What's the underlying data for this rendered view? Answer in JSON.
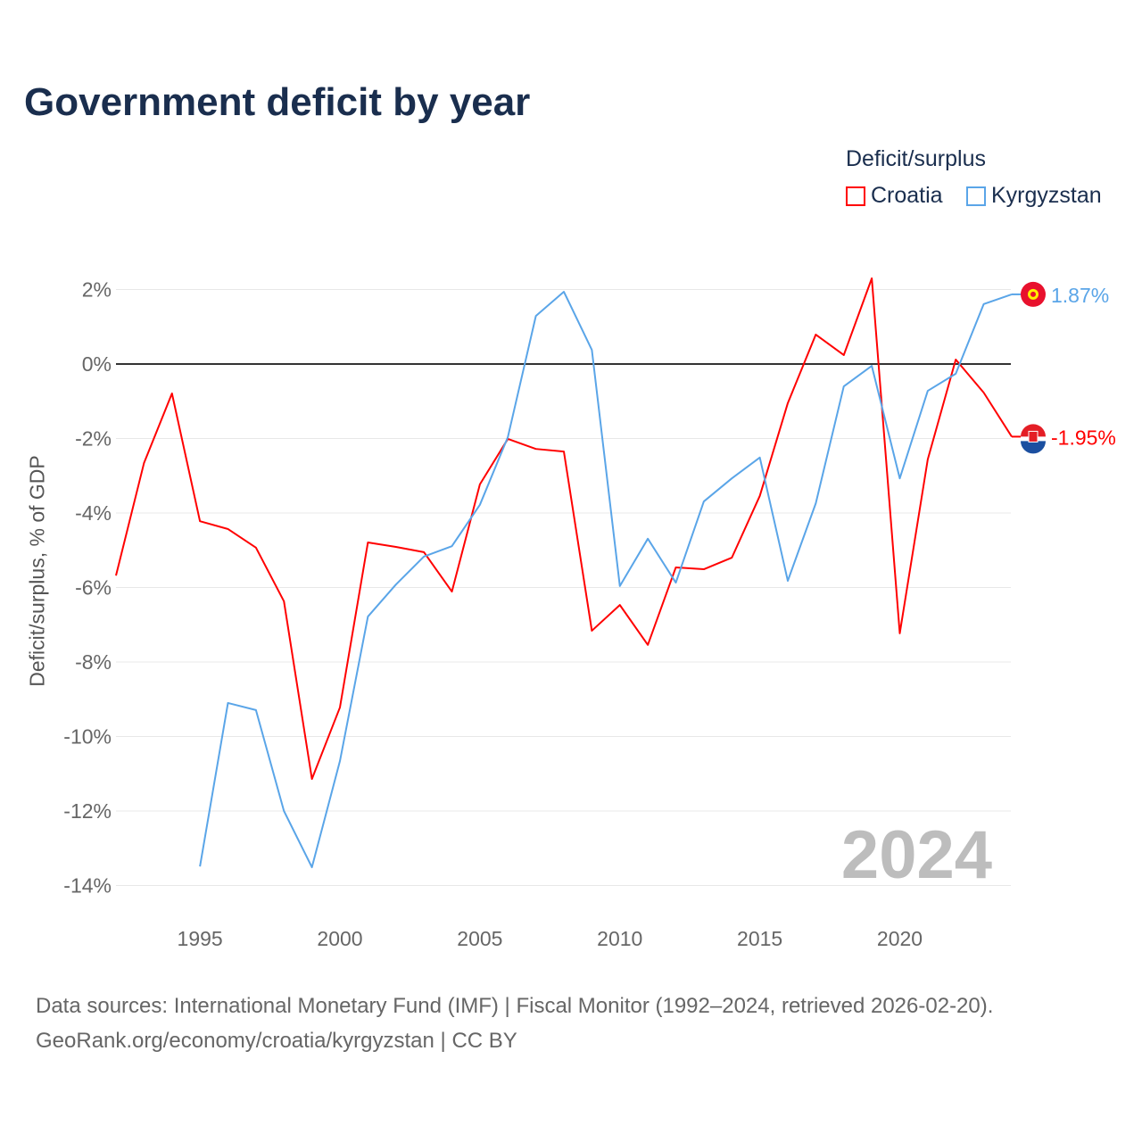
{
  "chart_data": {
    "type": "line",
    "title": "Government deficit by year",
    "ylabel": "Deficit/surplus, % of GDP",
    "xlabel": "",
    "ylim": [
      -14.5,
      3
    ],
    "xlim": [
      1992,
      2024
    ],
    "yticks": [
      2,
      0,
      -2,
      -4,
      -6,
      -8,
      -10,
      -12,
      -14
    ],
    "ytick_labels": [
      "2%",
      "0%",
      "-2%",
      "-4%",
      "-6%",
      "-8%",
      "-10%",
      "-12%",
      "-14%"
    ],
    "xticks": [
      1995,
      2000,
      2005,
      2010,
      2015,
      2020
    ],
    "xtick_labels": [
      "1995",
      "2000",
      "2005",
      "2010",
      "2015",
      "2020"
    ],
    "legend_title": "Deficit/surplus",
    "legend_position": "top-right",
    "watermark_year": "2024",
    "series": [
      {
        "name": "Croatia",
        "color": "#ff0000",
        "end_label": "-1.95%",
        "x": [
          1992,
          1993,
          1994,
          1995,
          1996,
          1997,
          1998,
          1999,
          2000,
          2001,
          2002,
          2003,
          2004,
          2005,
          2006,
          2007,
          2008,
          2009,
          2010,
          2011,
          2012,
          2013,
          2014,
          2015,
          2016,
          2017,
          2018,
          2019,
          2020,
          2021,
          2022,
          2023,
          2024
        ],
        "values": [
          -5.68,
          -2.66,
          -0.79,
          -4.22,
          -4.43,
          -4.93,
          -6.37,
          -11.14,
          -9.22,
          -4.79,
          -4.91,
          -5.05,
          -6.11,
          -3.23,
          -2.01,
          -2.28,
          -2.35,
          -7.16,
          -6.47,
          -7.54,
          -5.46,
          -5.51,
          -5.2,
          -3.54,
          -1.05,
          0.79,
          0.24,
          2.3,
          -7.23,
          -2.56,
          0.12,
          -0.77,
          -1.95
        ]
      },
      {
        "name": "Kyrgyzstan",
        "color": "#5aa5e8",
        "end_label": "1.87%",
        "x": [
          1995,
          1996,
          1997,
          1998,
          1999,
          2000,
          2001,
          2002,
          2003,
          2004,
          2005,
          2006,
          2007,
          2008,
          2009,
          2010,
          2011,
          2012,
          2013,
          2014,
          2015,
          2016,
          2017,
          2018,
          2019,
          2020,
          2021,
          2022,
          2023,
          2024
        ],
        "values": [
          -13.49,
          -9.1,
          -9.29,
          -12.0,
          -13.51,
          -10.66,
          -6.78,
          -5.92,
          -5.17,
          -4.89,
          -3.78,
          -1.96,
          1.29,
          1.94,
          0.38,
          -5.96,
          -4.69,
          -5.87,
          -3.69,
          -3.07,
          -2.51,
          -5.82,
          -3.74,
          -0.6,
          -0.05,
          -3.07,
          -0.72,
          -0.26,
          1.61,
          1.87
        ]
      }
    ]
  },
  "source_line1": "Data sources: International Monetary Fund (IMF) | Fiscal Monitor (1992–2024, retrieved 2026-02-20).",
  "source_line2": "GeoRank.org/economy/croatia/kyrgyzstan | CC BY"
}
